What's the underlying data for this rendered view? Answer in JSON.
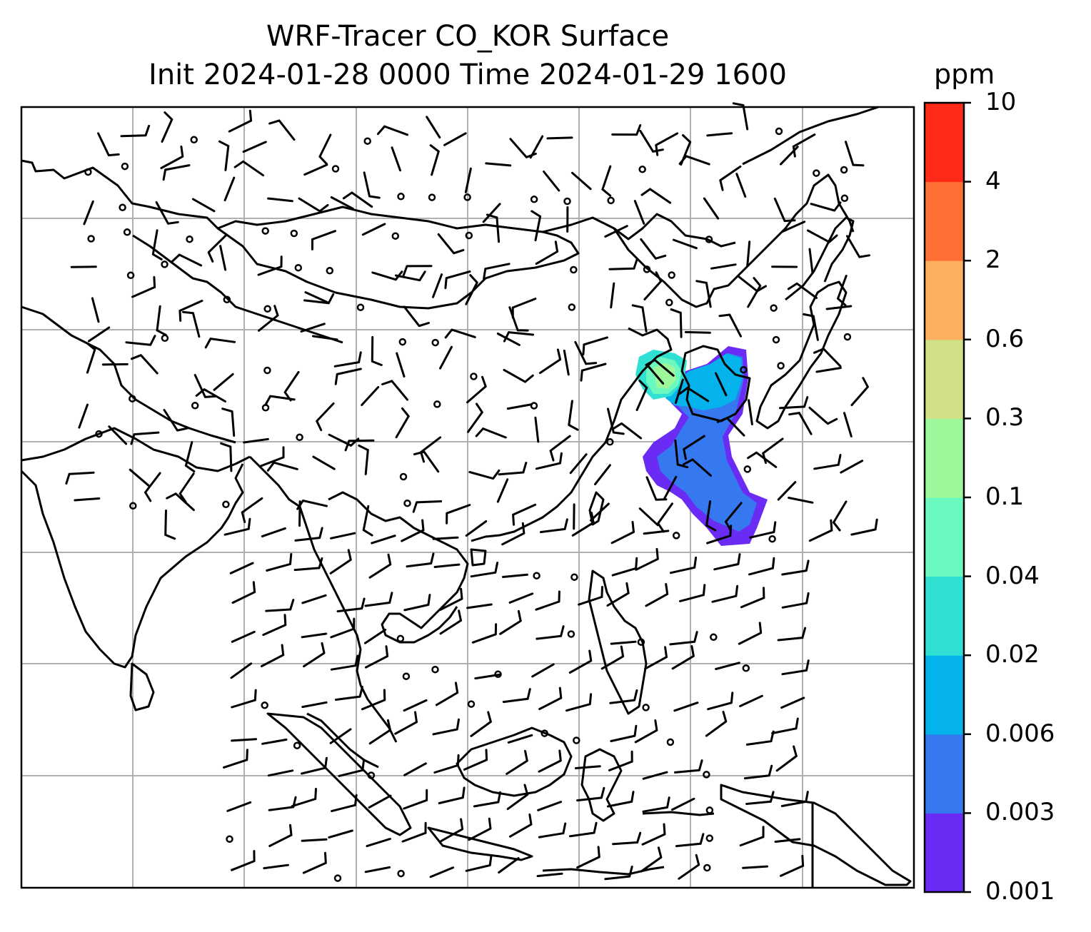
{
  "title": {
    "line1": "WRF-Tracer CO_KOR Surface",
    "line2": "Init 2024-01-28 0000 Time 2024-01-29 1600"
  },
  "colorbar": {
    "unit": "ppm",
    "ticks": [
      "0.001",
      "0.003",
      "0.006",
      "0.02",
      "0.04",
      "0.1",
      "0.3",
      "0.6",
      "2",
      "4",
      "10"
    ],
    "colors": [
      "#6a2cf5",
      "#3578f0",
      "#04b3ec",
      "#2fe0d3",
      "#6cf9bf",
      "#9cf89a",
      "#d1e085",
      "#fcb05f",
      "#ff7035",
      "#ff2a17"
    ]
  },
  "map": {
    "variable": "CO_KOR",
    "level": "Surface",
    "wind_barbs": true,
    "gridlines": true
  }
}
